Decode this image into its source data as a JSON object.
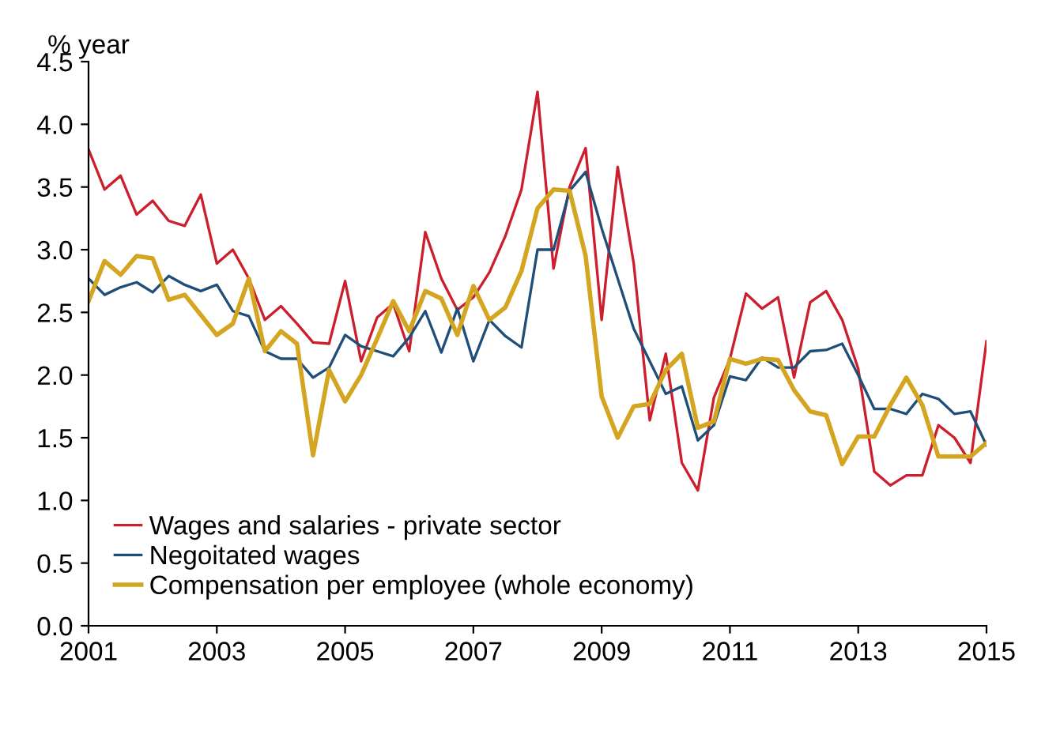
{
  "chart_data": {
    "type": "line",
    "ylabel": "% year",
    "x": [
      2001,
      2001.25,
      2001.5,
      2001.75,
      2002,
      2002.25,
      2002.5,
      2002.75,
      2003,
      2003.25,
      2003.5,
      2003.75,
      2004,
      2004.25,
      2004.5,
      2004.75,
      2005,
      2005.25,
      2005.5,
      2005.75,
      2006,
      2006.25,
      2006.5,
      2006.75,
      2007,
      2007.25,
      2007.5,
      2007.75,
      2008,
      2008.25,
      2008.5,
      2008.75,
      2009,
      2009.25,
      2009.5,
      2009.75,
      2010,
      2010.25,
      2010.5,
      2010.75,
      2011,
      2011.25,
      2011.5,
      2011.75,
      2012,
      2012.25,
      2012.5,
      2012.75,
      2013,
      2013.25,
      2013.5,
      2013.75,
      2014,
      2014.25,
      2014.5,
      2014.75,
      2015
    ],
    "series": [
      {
        "name": "Wages and salaries - private sector",
        "color": "#cc1f2e",
        "values": [
          3.8,
          3.48,
          3.59,
          3.28,
          3.39,
          3.23,
          3.19,
          3.44,
          2.89,
          3.0,
          2.77,
          2.44,
          2.55,
          2.41,
          2.26,
          2.25,
          2.75,
          2.11,
          2.46,
          2.57,
          2.19,
          3.14,
          2.77,
          2.52,
          2.62,
          2.82,
          3.11,
          3.48,
          4.26,
          2.85,
          3.5,
          3.81,
          2.44,
          3.66,
          2.89,
          1.64,
          2.17,
          1.3,
          1.08,
          1.82,
          2.13,
          2.65,
          2.53,
          2.62,
          1.98,
          2.58,
          2.67,
          2.44,
          2.05,
          1.23,
          1.12,
          1.2,
          1.2,
          1.6,
          1.5,
          1.3,
          2.27
        ]
      },
      {
        "name": "Negoitated wages",
        "color": "#1f4e79",
        "values": [
          2.77,
          2.64,
          2.7,
          2.74,
          2.66,
          2.79,
          2.72,
          2.67,
          2.72,
          2.51,
          2.47,
          2.19,
          2.13,
          2.13,
          1.98,
          2.06,
          2.32,
          2.23,
          2.19,
          2.15,
          2.3,
          2.51,
          2.18,
          2.53,
          2.11,
          2.44,
          2.31,
          2.22,
          3.0,
          3.0,
          3.47,
          3.62,
          3.17,
          2.77,
          2.37,
          2.11,
          1.85,
          1.91,
          1.48,
          1.6,
          1.99,
          1.96,
          2.14,
          2.06,
          2.06,
          2.19,
          2.2,
          2.25,
          2.0,
          1.73,
          1.73,
          1.69,
          1.85,
          1.81,
          1.69,
          1.71,
          1.44
        ]
      },
      {
        "name": "Compensation per employee (whole economy)",
        "color": "#d4a520",
        "values": [
          2.59,
          2.91,
          2.8,
          2.95,
          2.93,
          2.6,
          2.64,
          2.48,
          2.32,
          2.41,
          2.77,
          2.19,
          2.35,
          2.25,
          1.36,
          2.04,
          1.79,
          2.0,
          2.29,
          2.59,
          2.35,
          2.67,
          2.61,
          2.32,
          2.71,
          2.44,
          2.54,
          2.83,
          3.33,
          3.48,
          3.47,
          2.95,
          1.83,
          1.5,
          1.75,
          1.77,
          2.04,
          2.17,
          1.58,
          1.63,
          2.13,
          2.09,
          2.13,
          2.12,
          1.88,
          1.71,
          1.68,
          1.29,
          1.51,
          1.51,
          1.76,
          1.98,
          1.76,
          1.35,
          1.35,
          1.35,
          1.46
        ]
      }
    ],
    "xlim": [
      2001,
      2015
    ],
    "xticks": [
      2001,
      2003,
      2005,
      2007,
      2009,
      2011,
      2013,
      2015
    ],
    "ylim": [
      0,
      4.5
    ],
    "yticks": [
      {
        "value": 0,
        "label": "0.0"
      },
      {
        "value": 0.5,
        "label": "0.5"
      },
      {
        "value": 1,
        "label": "1.0"
      },
      {
        "value": 1.5,
        "label": "1.5"
      },
      {
        "value": 2,
        "label": "2.0"
      },
      {
        "value": 2.5,
        "label": "2.5"
      },
      {
        "value": 3,
        "label": "3.0"
      },
      {
        "value": 3.5,
        "label": "3.5"
      },
      {
        "value": 4,
        "label": "4.0"
      },
      {
        "value": 4.5,
        "label": "4.5"
      }
    ],
    "grid": false,
    "legend": "bottom left",
    "marker": "none",
    "line_style": "solid"
  }
}
